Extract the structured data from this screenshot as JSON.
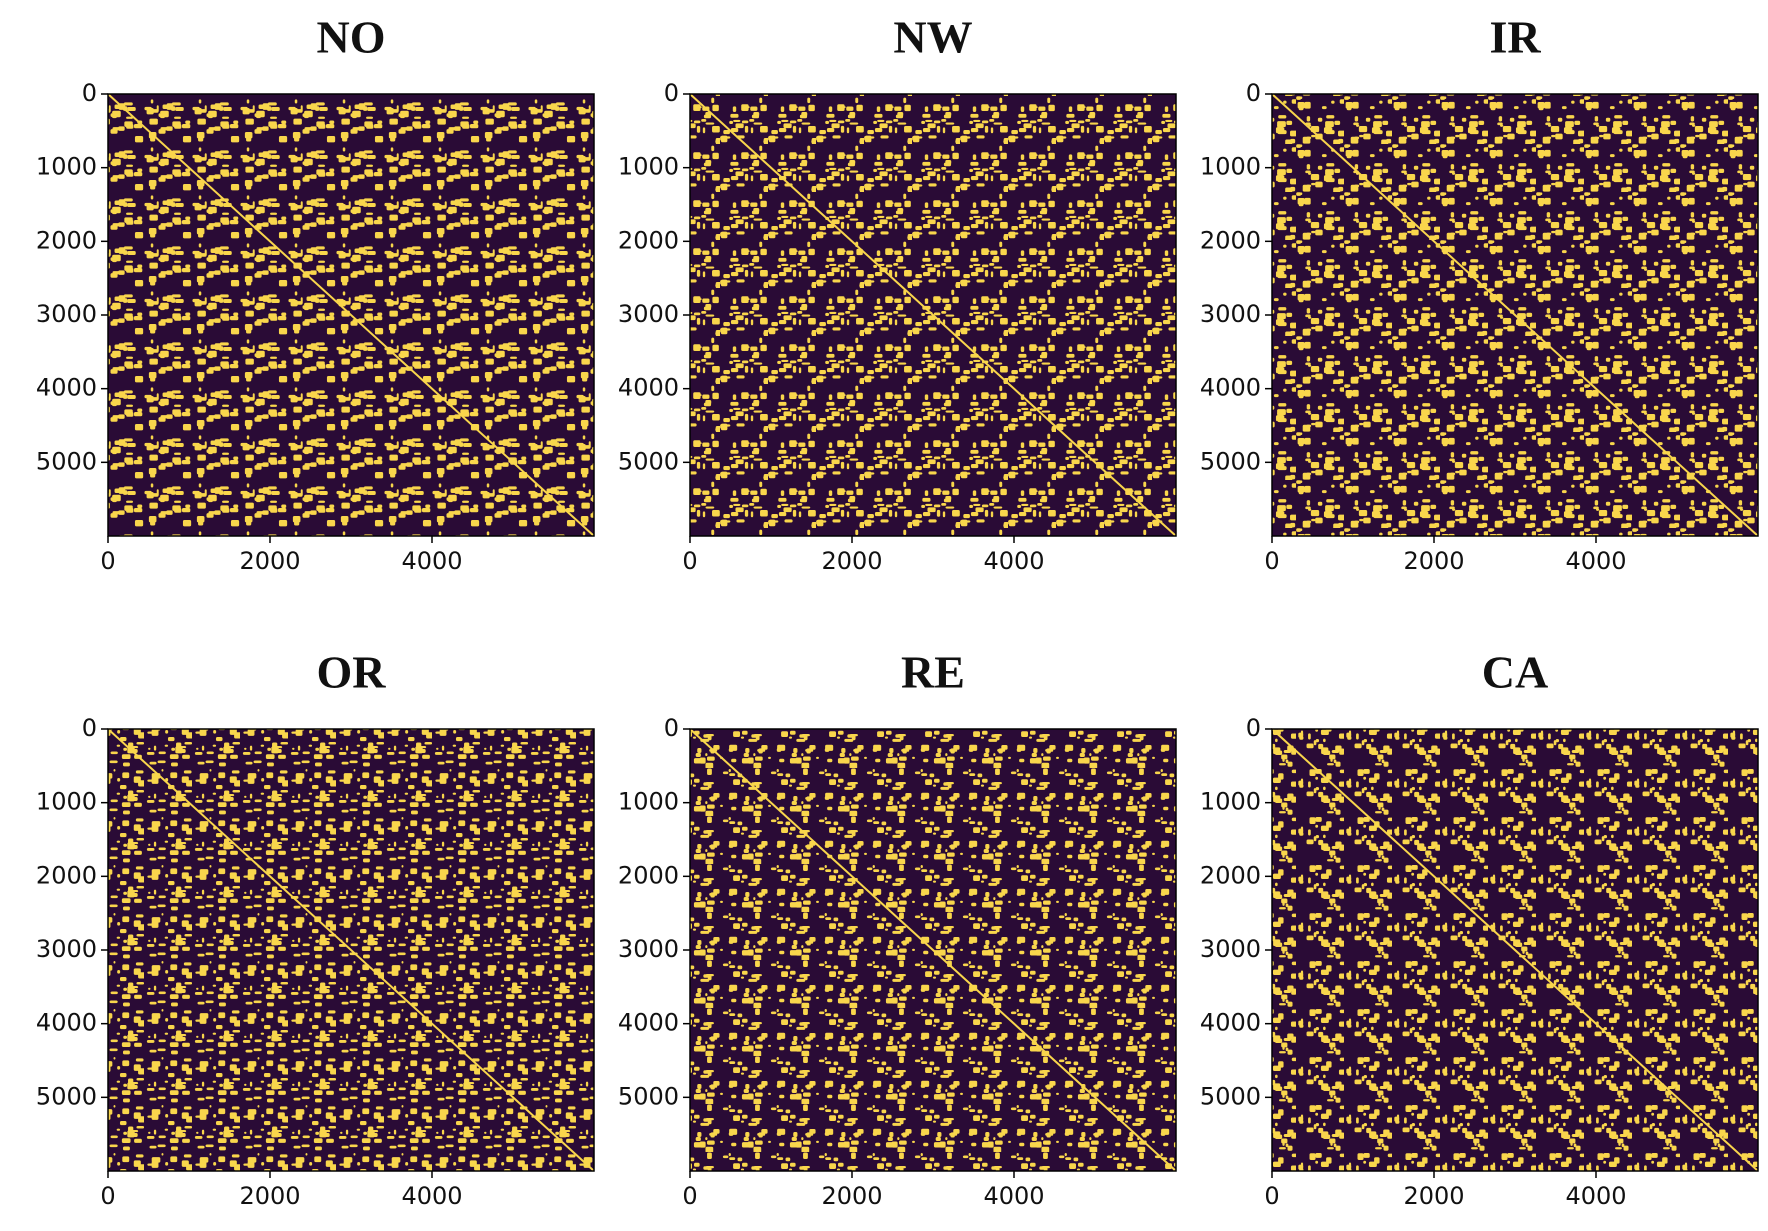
{
  "chart_data": [
    {
      "type": "heatmap",
      "title": "NO",
      "xlim": [
        0,
        6000
      ],
      "ylim": [
        6000,
        0
      ],
      "xticks": [
        0,
        2000,
        4000
      ],
      "yticks": [
        0,
        1000,
        2000,
        3000,
        4000,
        5000
      ],
      "colormap": [
        "#2a0b36",
        "#f9d64c"
      ]
    },
    {
      "type": "heatmap",
      "title": "NW",
      "xlim": [
        0,
        6000
      ],
      "ylim": [
        6000,
        0
      ],
      "xticks": [
        0,
        2000,
        4000
      ],
      "yticks": [
        0,
        1000,
        2000,
        3000,
        4000,
        5000
      ],
      "colormap": [
        "#2a0b36",
        "#f9d64c"
      ]
    },
    {
      "type": "heatmap",
      "title": "IR",
      "xlim": [
        0,
        6000
      ],
      "ylim": [
        6000,
        0
      ],
      "xticks": [
        0,
        2000,
        4000
      ],
      "yticks": [
        0,
        1000,
        2000,
        3000,
        4000,
        5000
      ],
      "colormap": [
        "#2a0b36",
        "#f9d64c"
      ]
    },
    {
      "type": "heatmap",
      "title": "OR",
      "xlim": [
        0,
        6000
      ],
      "ylim": [
        6000,
        0
      ],
      "xticks": [
        0,
        2000,
        4000
      ],
      "yticks": [
        0,
        1000,
        2000,
        3000,
        4000,
        5000
      ],
      "colormap": [
        "#2a0b36",
        "#f9d64c"
      ]
    },
    {
      "type": "heatmap",
      "title": "RE",
      "xlim": [
        0,
        6000
      ],
      "ylim": [
        6000,
        0
      ],
      "xticks": [
        0,
        2000,
        4000
      ],
      "yticks": [
        0,
        1000,
        2000,
        3000,
        4000,
        5000
      ],
      "colormap": [
        "#2a0b36",
        "#f9d64c"
      ]
    },
    {
      "type": "heatmap",
      "title": "CA",
      "xlim": [
        0,
        6000
      ],
      "ylim": [
        6000,
        0
      ],
      "xticks": [
        0,
        2000,
        4000
      ],
      "yticks": [
        0,
        1000,
        2000,
        3000,
        4000,
        5000
      ],
      "colormap": [
        "#2a0b36",
        "#f9d64c"
      ]
    }
  ]
}
